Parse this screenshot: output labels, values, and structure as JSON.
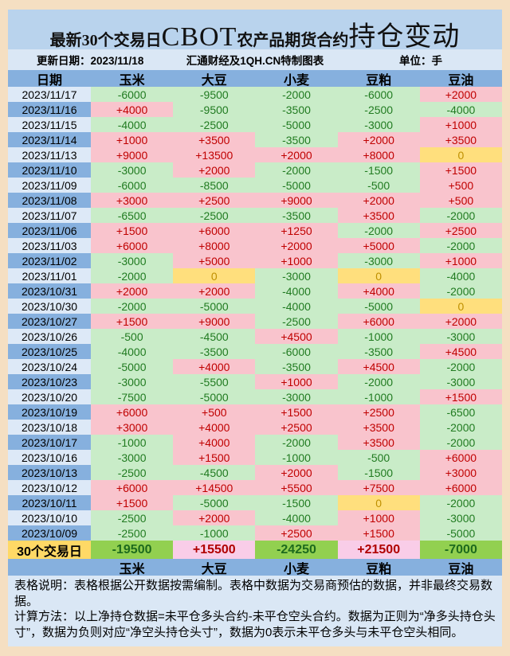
{
  "title": {
    "part1": "最新30个交易日",
    "part2": "CBOT",
    "part3": "农产品期货合约",
    "part4": "持仓变动"
  },
  "info_bar": {
    "update": "更新日期：2023/11/18",
    "source": "汇通财经及1QH.CN特制图表",
    "unit": "单位：手"
  },
  "chart_data": {
    "type": "table",
    "title": "最新30个交易日CBOT农产品期货合约持仓变动",
    "updated": "2023/11/18",
    "unit": "手",
    "columns": [
      "日期",
      "玉米",
      "大豆",
      "小麦",
      "豆粕",
      "豆油"
    ],
    "rows": [
      {
        "date": "2023/11/17",
        "values": [
          "-6000",
          "-9500",
          "-2000",
          "-6000",
          "+2000"
        ]
      },
      {
        "date": "2023/11/16",
        "values": [
          "+4000",
          "-9500",
          "-3500",
          "-2500",
          "-4000"
        ]
      },
      {
        "date": "2023/11/15",
        "values": [
          "-4000",
          "-2500",
          "-5000",
          "-3000",
          "+1000"
        ]
      },
      {
        "date": "2023/11/14",
        "values": [
          "+1000",
          "+3500",
          "-3500",
          "+2000",
          "+3500"
        ]
      },
      {
        "date": "2023/11/13",
        "values": [
          "+9000",
          "+13500",
          "+2000",
          "+8000",
          "0"
        ]
      },
      {
        "date": "2023/11/10",
        "values": [
          "-3000",
          "+2000",
          "-2000",
          "-1500",
          "+1500"
        ]
      },
      {
        "date": "2023/11/09",
        "values": [
          "-6000",
          "-8500",
          "-5000",
          "-500",
          "+500"
        ]
      },
      {
        "date": "2023/11/08",
        "values": [
          "+3000",
          "+2500",
          "+9000",
          "+2000",
          "+500"
        ]
      },
      {
        "date": "2023/11/07",
        "values": [
          "-6500",
          "-2500",
          "-3500",
          "+3500",
          "-2000"
        ]
      },
      {
        "date": "2023/11/06",
        "values": [
          "+1500",
          "+6000",
          "+1250",
          "-2000",
          "+2500"
        ]
      },
      {
        "date": "2023/11/03",
        "values": [
          "+6000",
          "+8000",
          "+2000",
          "+5000",
          "-2000"
        ]
      },
      {
        "date": "2023/11/02",
        "values": [
          "-3000",
          "+5000",
          "+1000",
          "-3000",
          "+1000"
        ]
      },
      {
        "date": "2023/11/01",
        "values": [
          "-2000",
          "0",
          "-3000",
          "0",
          "-4000"
        ]
      },
      {
        "date": "2023/10/31",
        "values": [
          "+2000",
          "+2000",
          "-4000",
          "+4000",
          "-2000"
        ]
      },
      {
        "date": "2023/10/30",
        "values": [
          "-2000",
          "-5000",
          "-4000",
          "-5000",
          "0"
        ]
      },
      {
        "date": "2023/10/27",
        "values": [
          "+1500",
          "+9000",
          "-2500",
          "+6000",
          "+2000"
        ]
      },
      {
        "date": "2023/10/26",
        "values": [
          "-500",
          "-4500",
          "+4500",
          "-1000",
          "-3000"
        ]
      },
      {
        "date": "2023/10/25",
        "values": [
          "-4000",
          "-3500",
          "-6000",
          "-3500",
          "+4500"
        ]
      },
      {
        "date": "2023/10/24",
        "values": [
          "-5000",
          "+4000",
          "-3500",
          "+4500",
          "-2000"
        ]
      },
      {
        "date": "2023/10/23",
        "values": [
          "-3000",
          "-5500",
          "+1000",
          "-2000",
          "-3000"
        ]
      },
      {
        "date": "2023/10/20",
        "values": [
          "-7500",
          "-5000",
          "-3000",
          "-1000",
          "+1500"
        ]
      },
      {
        "date": "2023/10/19",
        "values": [
          "+6000",
          "+500",
          "+1500",
          "+2500",
          "-6500"
        ]
      },
      {
        "date": "2023/10/18",
        "values": [
          "+3000",
          "+4000",
          "+2500",
          "+3500",
          "-2000"
        ]
      },
      {
        "date": "2023/10/17",
        "values": [
          "-1000",
          "+4000",
          "-2000",
          "+3500",
          "-2000"
        ]
      },
      {
        "date": "2023/10/16",
        "values": [
          "-3000",
          "+1500",
          "-1000",
          "-500",
          "+6000"
        ]
      },
      {
        "date": "2023/10/13",
        "values": [
          "-2500",
          "-4500",
          "+2000",
          "-1500",
          "+3000"
        ]
      },
      {
        "date": "2023/10/12",
        "values": [
          "+6000",
          "+14500",
          "+5500",
          "+7500",
          "+6000"
        ]
      },
      {
        "date": "2023/10/11",
        "values": [
          "+1500",
          "-5000",
          "-1500",
          "0",
          "-2000"
        ]
      },
      {
        "date": "2023/10/10",
        "values": [
          "-2500",
          "+2000",
          "-4000",
          "+1000",
          "-3000"
        ]
      },
      {
        "date": "2023/10/09",
        "values": [
          "-2500",
          "-1000",
          "+2500",
          "+1500",
          "-5000"
        ]
      }
    ],
    "totals": {
      "label": "30个交易日",
      "values": [
        "-19500",
        "+15500",
        "-24250",
        "+21500",
        "-7000"
      ]
    },
    "footer_columns": [
      "玉米",
      "大豆",
      "小麦",
      "豆粕",
      "豆油"
    ]
  },
  "notes": [
    "表格说明：表格根据公开数据按需编制。表格中数据为交易商预估的数据，并非最终交易数据。",
    "计算方法：以上净持仓数据=未平仓多头合约-未平仓空头合约。数据为正则为“净多头持仓头寸”，数据为负则对应“净空头持仓头寸”，数据为0表示未平仓多头与未平仓空头相同。"
  ],
  "colors": {
    "border": "#f5dfc2",
    "frame_bg": "#dae7f5",
    "title_band_bg": "#b9d3ed",
    "header_blue": "#86b0de",
    "date_row_light": "#dde9f7",
    "positive_bg": "#f9c4cd",
    "positive_text": "#c00000",
    "negative_bg": "#c9ecc8",
    "negative_text": "#217b21",
    "zero_bg": "#ffdf7d",
    "zero_text": "#bf8f00",
    "total_label_bg": "#ffd966",
    "total_positive_bg": "#f9cde8",
    "total_negative_bg": "#92d050"
  }
}
